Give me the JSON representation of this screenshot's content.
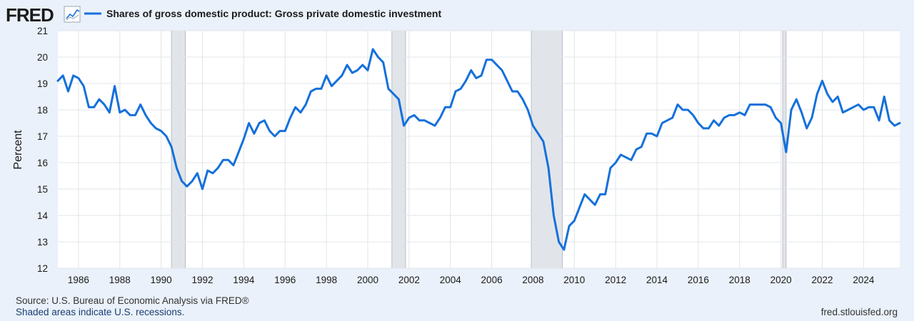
{
  "logo": {
    "text": "FRED",
    "icon": "trend-chart-icon"
  },
  "legend": {
    "label": "Shares of gross domestic product: Gross private domestic investment"
  },
  "footer": {
    "source": "Source: U.S. Bureau of Economic Analysis via FRED®",
    "note": "Shaded areas indicate U.S. recessions.",
    "site": "fred.stlouisfed.org"
  },
  "colors": {
    "series": "#1570db",
    "note": "#1a3e72"
  },
  "chart_data": {
    "type": "line",
    "title": "Shares of gross domestic product: Gross private domestic investment",
    "xlabel": "",
    "ylabel": "Percent",
    "xlim": [
      1985.0,
      2025.75
    ],
    "ylim": [
      12,
      21
    ],
    "yticks": [
      12,
      13,
      14,
      15,
      16,
      17,
      18,
      19,
      20,
      21
    ],
    "xticks": [
      1986,
      1988,
      1990,
      1992,
      1994,
      1996,
      1998,
      2000,
      2002,
      2004,
      2006,
      2008,
      2010,
      2012,
      2014,
      2016,
      2018,
      2020,
      2022,
      2024
    ],
    "grid": true,
    "legend_position": "top-left",
    "recessions": [
      [
        1990.5,
        1991.17
      ],
      [
        2001.17,
        2001.83
      ],
      [
        2007.92,
        2009.42
      ],
      [
        2020.08,
        2020.25
      ]
    ],
    "series": [
      {
        "name": "Shares of gross domestic product: Gross private domestic investment",
        "frequency": "quarterly",
        "start": 1985.0,
        "values": [
          19.1,
          19.3,
          18.7,
          19.3,
          19.2,
          18.9,
          18.1,
          18.1,
          18.4,
          18.2,
          17.9,
          18.9,
          17.9,
          18.0,
          17.8,
          17.8,
          18.2,
          17.8,
          17.5,
          17.3,
          17.2,
          17.0,
          16.6,
          15.8,
          15.3,
          15.1,
          15.3,
          15.6,
          15.0,
          15.7,
          15.6,
          15.8,
          16.1,
          16.1,
          15.9,
          16.4,
          16.9,
          17.5,
          17.1,
          17.5,
          17.6,
          17.2,
          17.0,
          17.2,
          17.2,
          17.7,
          18.1,
          17.9,
          18.2,
          18.7,
          18.8,
          18.8,
          19.3,
          18.9,
          19.1,
          19.3,
          19.7,
          19.4,
          19.5,
          19.7,
          19.5,
          20.3,
          20.0,
          19.8,
          18.8,
          18.6,
          18.4,
          17.4,
          17.7,
          17.8,
          17.6,
          17.6,
          17.5,
          17.4,
          17.7,
          18.1,
          18.1,
          18.7,
          18.8,
          19.1,
          19.5,
          19.2,
          19.3,
          19.9,
          19.9,
          19.7,
          19.5,
          19.1,
          18.7,
          18.7,
          18.4,
          18.0,
          17.4,
          17.1,
          16.8,
          15.8,
          14.0,
          13.0,
          12.7,
          13.6,
          13.8,
          14.3,
          14.8,
          14.6,
          14.4,
          14.8,
          14.8,
          15.8,
          16.0,
          16.3,
          16.2,
          16.1,
          16.5,
          16.6,
          17.1,
          17.1,
          17.0,
          17.5,
          17.6,
          17.7,
          18.2,
          18.0,
          18.0,
          17.8,
          17.5,
          17.3,
          17.3,
          17.6,
          17.4,
          17.7,
          17.8,
          17.8,
          17.9,
          17.8,
          18.2,
          18.2,
          18.2,
          18.2,
          18.1,
          17.7,
          17.5,
          16.4,
          18.0,
          18.4,
          17.9,
          17.3,
          17.7,
          18.6,
          19.1,
          18.6,
          18.3,
          18.5,
          17.9,
          18.0,
          18.1,
          18.2,
          18.0,
          18.1,
          18.1,
          17.6,
          18.5,
          17.6,
          17.4,
          17.5
        ]
      }
    ]
  }
}
